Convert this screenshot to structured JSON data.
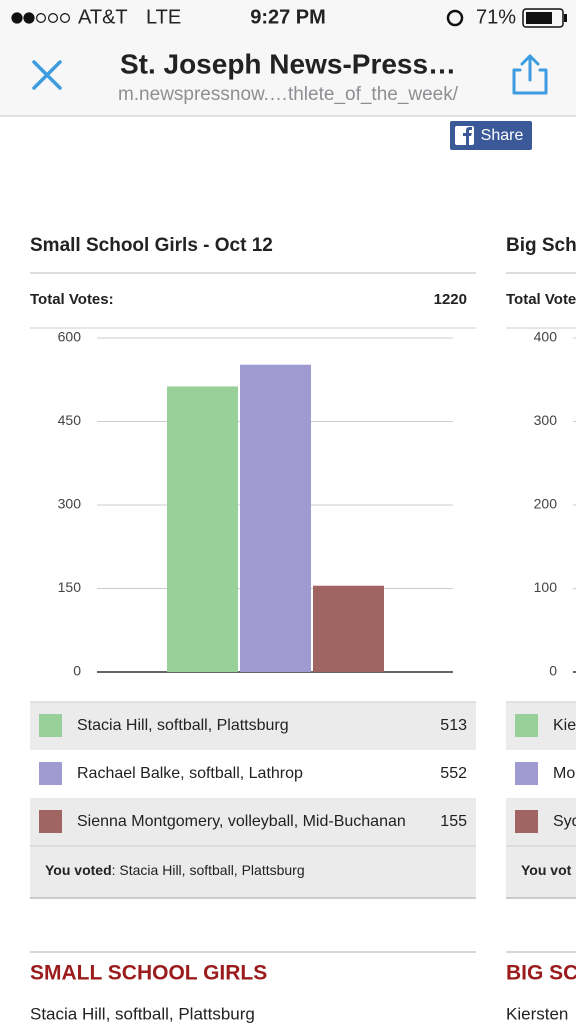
{
  "status_bar": {
    "carrier": "AT&T",
    "network": "LTE",
    "time": "9:27 PM",
    "battery": "71%"
  },
  "browser": {
    "title": "St. Joseph News-Press…",
    "url": "m.newspressnow.…thlete_of_the_week/"
  },
  "share": "Share",
  "chart_data": [
    {
      "type": "bar",
      "title": "Small School Girls - Oct 12",
      "total_label": "Total Votes:",
      "total": 1220,
      "categories": [
        "Stacia Hill, softball, Plattsburg",
        "Rachael Balke, softball, Lathrop",
        "Sienna Montgomery, volleyball, Mid-Buchanan"
      ],
      "values": [
        513,
        552,
        155
      ],
      "colors": [
        "#99d09a",
        "#9f9bd1",
        "#a06462"
      ],
      "ylim": [
        0,
        600
      ],
      "yticks": [
        0,
        150,
        300,
        450,
        600
      ],
      "grid": true,
      "voted_label": "You voted",
      "voted": ": Stacia Hill, softball, Plattsburg"
    },
    {
      "type": "bar",
      "title": "Big Sch",
      "total_label": "Total Vote",
      "categories": [
        "Kie",
        "Mo",
        "Syd"
      ],
      "colors": [
        "#99d09a",
        "#9f9bd1",
        "#a06462"
      ],
      "ylim": [
        0,
        400
      ],
      "yticks": [
        0,
        100,
        200,
        300,
        400
      ],
      "grid": true,
      "voted_label": "You vot"
    }
  ],
  "sections": [
    {
      "heading": "SMALL SCHOOL GIRLS",
      "text": "Stacia Hill, softball, Plattsburg"
    },
    {
      "heading": "BIG SC",
      "text": "Kiersten"
    }
  ]
}
